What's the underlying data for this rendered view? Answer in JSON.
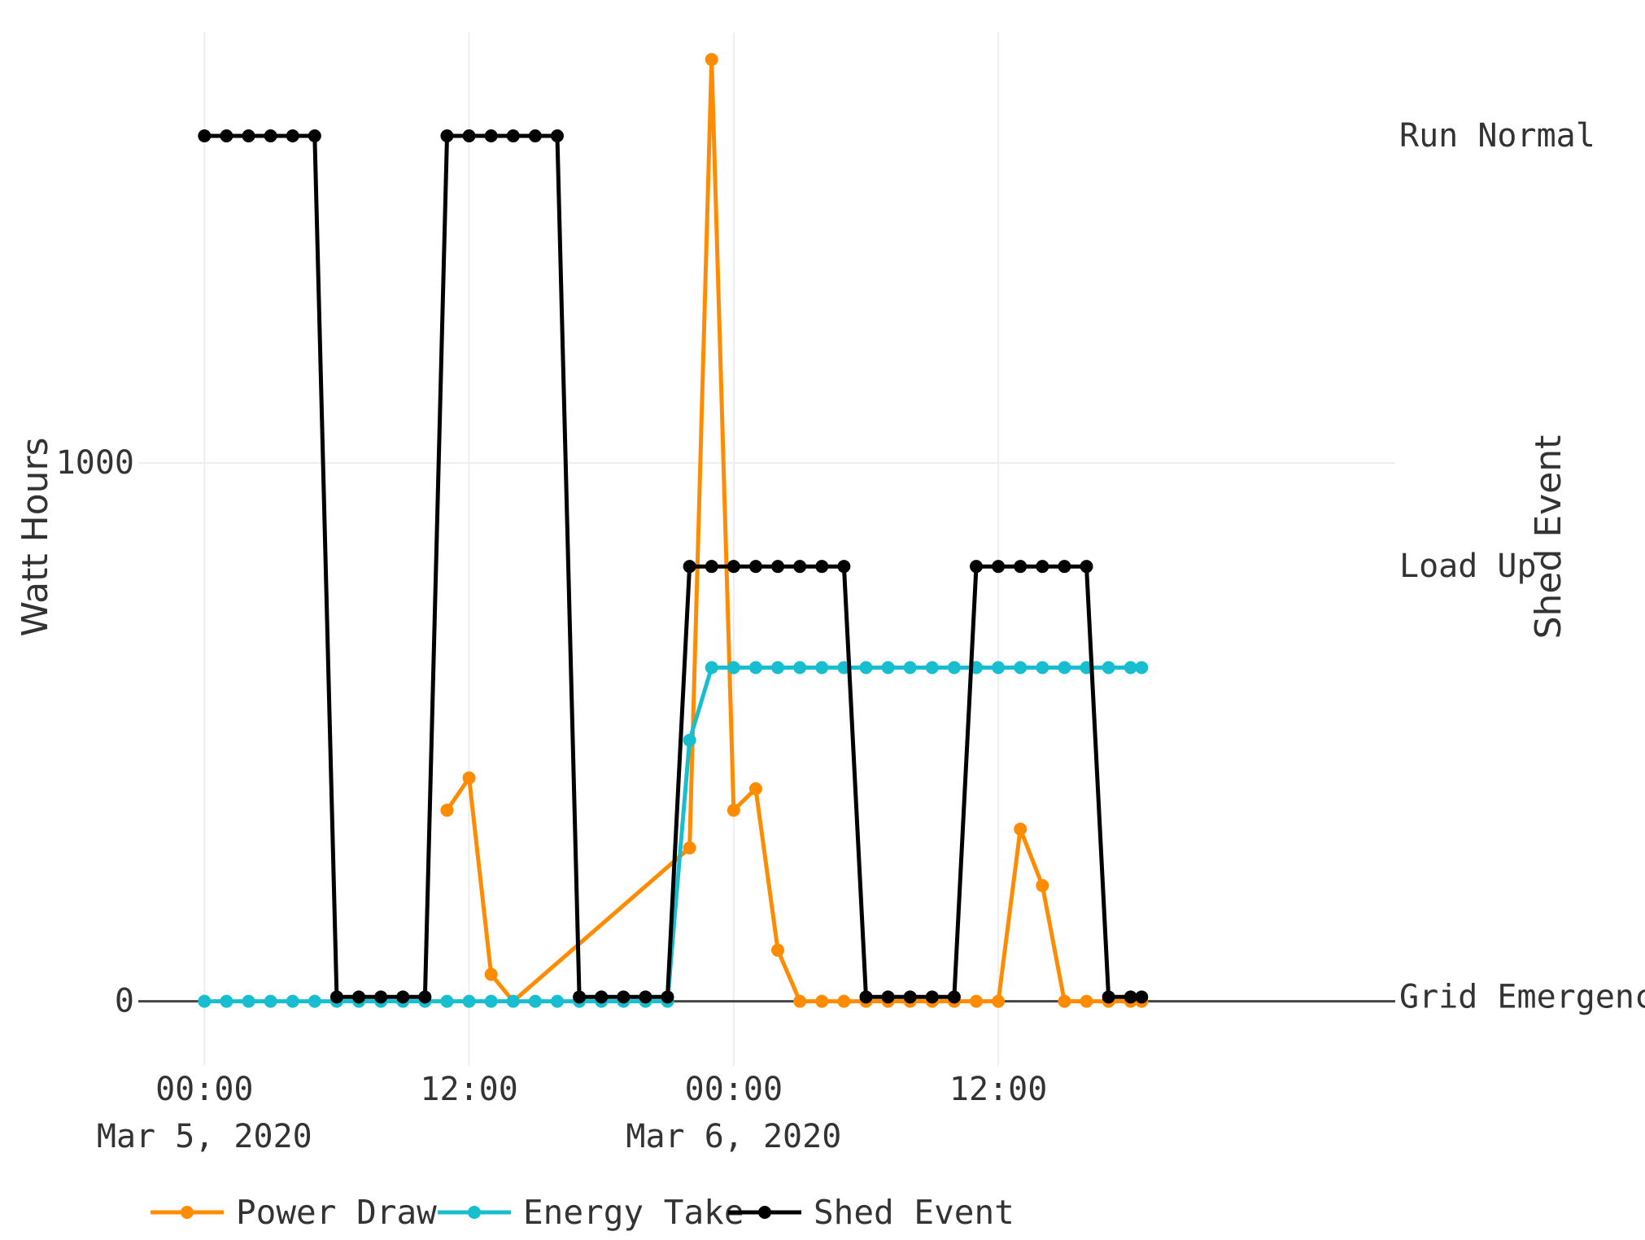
{
  "chart_data": {
    "type": "line",
    "xlabel": "",
    "ylabel": "Watt Hours",
    "y2label": "Shed Event",
    "x_ticks": [
      {
        "time": "2020-03-05 00:00",
        "line1": "00:00",
        "line2": "Mar 5, 2020"
      },
      {
        "time": "2020-03-05 12:00",
        "line1": "12:00",
        "line2": ""
      },
      {
        "time": "2020-03-06 00:00",
        "line1": "00:00",
        "line2": "Mar 6, 2020"
      },
      {
        "time": "2020-03-06 12:00",
        "line1": "12:00",
        "line2": ""
      }
    ],
    "xlim": [
      "2020-03-04 21:00",
      "2020-03-07 06:00"
    ],
    "y_ticks": [
      0,
      1000
    ],
    "ylim": [
      -120,
      1800
    ],
    "y2_categories": [
      "Grid Emergency",
      "Load Up",
      "Run Normal"
    ],
    "y2lim": [
      -0.16,
      2.24
    ],
    "grid": true,
    "legend_position": "bottom",
    "series": [
      {
        "name": "Power Draw",
        "color": "#ff8c00",
        "axis": "y",
        "x": [
          "2020-03-05 11:00",
          "2020-03-05 12:00",
          "2020-03-05 13:00",
          "2020-03-05 14:00",
          "2020-03-05 22:00",
          "2020-03-05 23:00",
          "2020-03-06 00:00",
          "2020-03-06 01:00",
          "2020-03-06 02:00",
          "2020-03-06 03:00",
          "2020-03-06 04:00",
          "2020-03-06 05:00",
          "2020-03-06 06:00",
          "2020-03-06 07:00",
          "2020-03-06 08:00",
          "2020-03-06 09:00",
          "2020-03-06 10:00",
          "2020-03-06 11:00",
          "2020-03-06 12:00",
          "2020-03-06 13:00",
          "2020-03-06 14:00",
          "2020-03-06 15:00",
          "2020-03-06 16:00",
          "2020-03-06 17:00",
          "2020-03-06 18:00",
          "2020-03-06 18:30"
        ],
        "y": [
          355,
          415,
          50,
          0,
          285,
          1750,
          355,
          395,
          95,
          0,
          0,
          0,
          0,
          0,
          0,
          0,
          0,
          0,
          0,
          320,
          215,
          0,
          0,
          0,
          0,
          0
        ],
        "markers": [
          true,
          true,
          true,
          false,
          true,
          true,
          true,
          true,
          true,
          true,
          true,
          true,
          true,
          true,
          true,
          true,
          true,
          true,
          true,
          true,
          true,
          true,
          true,
          true,
          true,
          true
        ]
      },
      {
        "name": "Energy Take",
        "color": "#17becf",
        "axis": "y",
        "x": [
          "2020-03-05 00:00",
          "2020-03-05 01:00",
          "2020-03-05 02:00",
          "2020-03-05 03:00",
          "2020-03-05 04:00",
          "2020-03-05 05:00",
          "2020-03-05 06:00",
          "2020-03-05 07:00",
          "2020-03-05 08:00",
          "2020-03-05 09:00",
          "2020-03-05 10:00",
          "2020-03-05 11:00",
          "2020-03-05 12:00",
          "2020-03-05 13:00",
          "2020-03-05 14:00",
          "2020-03-05 15:00",
          "2020-03-05 16:00",
          "2020-03-05 17:00",
          "2020-03-05 18:00",
          "2020-03-05 19:00",
          "2020-03-05 20:00",
          "2020-03-05 21:00",
          "2020-03-05 22:00",
          "2020-03-05 23:00",
          "2020-03-06 00:00",
          "2020-03-06 01:00",
          "2020-03-06 02:00",
          "2020-03-06 03:00",
          "2020-03-06 04:00",
          "2020-03-06 05:00",
          "2020-03-06 06:00",
          "2020-03-06 07:00",
          "2020-03-06 08:00",
          "2020-03-06 09:00",
          "2020-03-06 10:00",
          "2020-03-06 11:00",
          "2020-03-06 12:00",
          "2020-03-06 13:00",
          "2020-03-06 14:00",
          "2020-03-06 15:00",
          "2020-03-06 16:00",
          "2020-03-06 17:00",
          "2020-03-06 18:00",
          "2020-03-06 18:30"
        ],
        "y": [
          0,
          0,
          0,
          0,
          0,
          0,
          0,
          0,
          0,
          0,
          0,
          0,
          0,
          0,
          0,
          0,
          0,
          0,
          0,
          0,
          0,
          0,
          485,
          620,
          620,
          620,
          620,
          620,
          620,
          620,
          620,
          620,
          620,
          620,
          620,
          620,
          620,
          620,
          620,
          620,
          620,
          620,
          620,
          620
        ]
      },
      {
        "name": "Shed Event",
        "color": "#000000",
        "axis": "y2",
        "x": [
          "2020-03-05 00:00",
          "2020-03-05 01:00",
          "2020-03-05 02:00",
          "2020-03-05 03:00",
          "2020-03-05 04:00",
          "2020-03-05 05:00",
          "2020-03-05 06:00",
          "2020-03-05 07:00",
          "2020-03-05 08:00",
          "2020-03-05 09:00",
          "2020-03-05 10:00",
          "2020-03-05 11:00",
          "2020-03-05 12:00",
          "2020-03-05 13:00",
          "2020-03-05 14:00",
          "2020-03-05 15:00",
          "2020-03-05 16:00",
          "2020-03-05 17:00",
          "2020-03-05 18:00",
          "2020-03-05 19:00",
          "2020-03-05 20:00",
          "2020-03-05 21:00",
          "2020-03-05 22:00",
          "2020-03-05 23:00",
          "2020-03-06 00:00",
          "2020-03-06 01:00",
          "2020-03-06 02:00",
          "2020-03-06 03:00",
          "2020-03-06 04:00",
          "2020-03-06 05:00",
          "2020-03-06 06:00",
          "2020-03-06 07:00",
          "2020-03-06 08:00",
          "2020-03-06 09:00",
          "2020-03-06 10:00",
          "2020-03-06 11:00",
          "2020-03-06 12:00",
          "2020-03-06 13:00",
          "2020-03-06 14:00",
          "2020-03-06 15:00",
          "2020-03-06 16:00",
          "2020-03-06 17:00",
          "2020-03-06 18:00",
          "2020-03-06 18:30"
        ],
        "y": [
          "Run Normal",
          "Run Normal",
          "Run Normal",
          "Run Normal",
          "Run Normal",
          "Run Normal",
          "Grid Emergency",
          "Grid Emergency",
          "Grid Emergency",
          "Grid Emergency",
          "Grid Emergency",
          "Run Normal",
          "Run Normal",
          "Run Normal",
          "Run Normal",
          "Run Normal",
          "Run Normal",
          "Grid Emergency",
          "Grid Emergency",
          "Grid Emergency",
          "Grid Emergency",
          "Grid Emergency",
          "Load Up",
          "Load Up",
          "Load Up",
          "Load Up",
          "Load Up",
          "Load Up",
          "Load Up",
          "Load Up",
          "Grid Emergency",
          "Grid Emergency",
          "Grid Emergency",
          "Grid Emergency",
          "Grid Emergency",
          "Load Up",
          "Load Up",
          "Load Up",
          "Load Up",
          "Load Up",
          "Load Up",
          "Grid Emergency",
          "Grid Emergency",
          "Grid Emergency"
        ]
      }
    ]
  }
}
